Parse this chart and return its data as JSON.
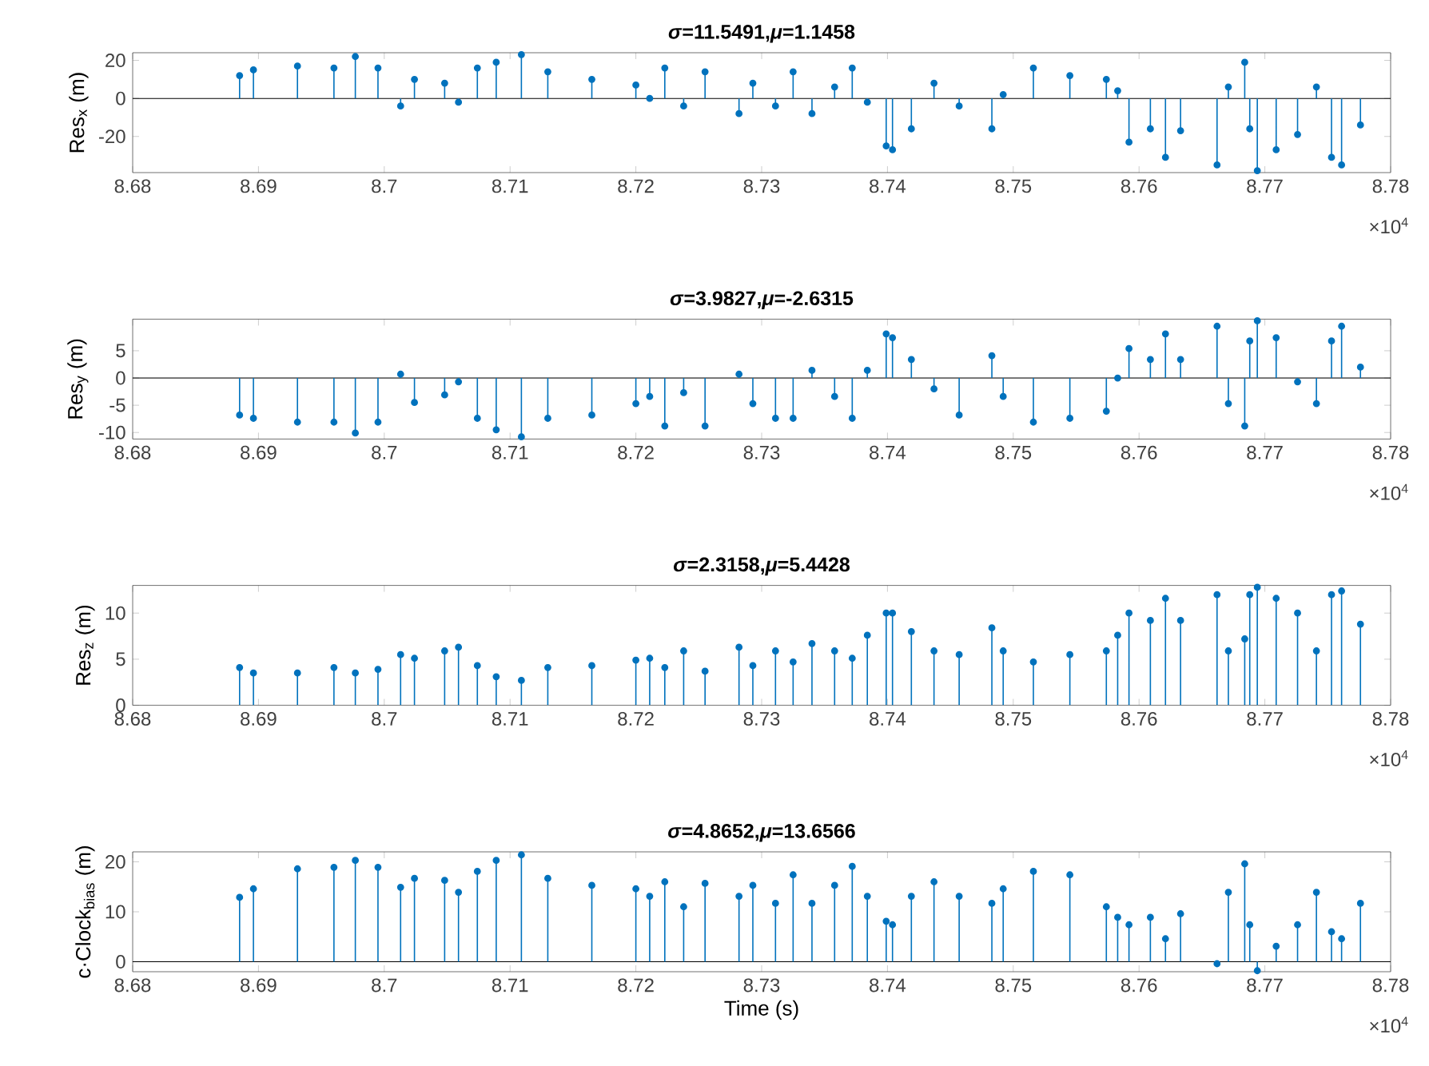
{
  "chart_data": [
    {
      "type": "lollipop",
      "title": "*σ*=11.5491,*μ*=1.1458",
      "ylabel": "Res$_{x}$ (m)",
      "annotations": [
        "×10$^{4}$"
      ],
      "color": "#0072bd",
      "marker": "circle",
      "x": [
        8.6885,
        8.6896,
        8.6931,
        8.696,
        8.6977,
        8.6995,
        8.7013,
        8.7024,
        8.7048,
        8.7059,
        8.7074,
        8.7089,
        8.7109,
        8.713,
        8.7165,
        8.72,
        8.7211,
        8.7223,
        8.7238,
        8.7255,
        8.7282,
        8.7293,
        8.7311,
        8.7325,
        8.734,
        8.7358,
        8.7372,
        8.7384,
        8.7399,
        8.7404,
        8.7419,
        8.7437,
        8.7457,
        8.7483,
        8.7492,
        8.7516,
        8.7545,
        8.7574,
        8.7583,
        8.7592,
        8.7609,
        8.7621,
        8.7633,
        8.7662,
        8.7671,
        8.7684,
        8.7688,
        8.7694,
        8.7709,
        8.7726,
        8.7741,
        8.7753,
        8.7761,
        8.7776
      ],
      "values": [
        12,
        15,
        17,
        16,
        22,
        16,
        -4,
        10,
        8,
        -2,
        16,
        19,
        23,
        14,
        10,
        7,
        0,
        16,
        -4,
        14,
        -8,
        8,
        -4,
        14,
        -8,
        6,
        16,
        -2,
        -25,
        -27,
        -16,
        8,
        -4,
        -16,
        2,
        16,
        12,
        10,
        4,
        -23,
        -16,
        -31,
        -17,
        -35,
        6,
        19,
        -16,
        -38,
        -27,
        -19,
        6,
        -31,
        -35,
        -14
      ],
      "xlim": [
        8.68,
        8.78
      ],
      "ylim": [
        -39,
        24
      ],
      "yticks": [
        -20,
        0,
        20
      ],
      "xticks": [
        8.68,
        8.69,
        8.7,
        8.71,
        8.72,
        8.73,
        8.74,
        8.75,
        8.76,
        8.77,
        8.78
      ],
      "ref_lines": [
        {
          "axis": "y",
          "value": 0,
          "color": "#000000"
        }
      ]
    },
    {
      "type": "lollipop",
      "title": "*σ*=3.9827,*μ*=-2.6315",
      "ylabel": "Res$_{y}$ (m)",
      "annotations": [
        "×10$^{4}$"
      ],
      "color": "#0072bd",
      "marker": "circle",
      "x": [
        8.6885,
        8.6896,
        8.6931,
        8.696,
        8.6977,
        8.6995,
        8.7013,
        8.7024,
        8.7048,
        8.7059,
        8.7074,
        8.7089,
        8.7109,
        8.713,
        8.7165,
        8.72,
        8.7211,
        8.7223,
        8.7238,
        8.7255,
        8.7282,
        8.7293,
        8.7311,
        8.7325,
        8.734,
        8.7358,
        8.7372,
        8.7384,
        8.7399,
        8.7404,
        8.7419,
        8.7437,
        8.7457,
        8.7483,
        8.7492,
        8.7516,
        8.7545,
        8.7574,
        8.7583,
        8.7592,
        8.7609,
        8.7621,
        8.7633,
        8.7662,
        8.7671,
        8.7684,
        8.7688,
        8.7694,
        8.7709,
        8.7726,
        8.7741,
        8.7753,
        8.7761,
        8.7776
      ],
      "values": [
        -6.8,
        -7.4,
        -8.1,
        -8.1,
        -10.1,
        -8.1,
        0.7,
        -4.5,
        -3.1,
        -0.7,
        -7.4,
        -9.5,
        -10.8,
        -7.4,
        -6.8,
        -4.7,
        -3.4,
        -8.8,
        -2.7,
        -8.8,
        0.7,
        -4.7,
        -7.4,
        -7.4,
        1.4,
        -3.4,
        -7.4,
        1.4,
        8.1,
        7.4,
        3.4,
        -2,
        -6.8,
        4.1,
        -3.4,
        -8.1,
        -7.4,
        -6.1,
        0,
        5.4,
        3.4,
        8.1,
        3.4,
        9.5,
        -4.7,
        -8.8,
        6.8,
        10.5,
        7.4,
        -0.7,
        -4.7,
        6.8,
        9.5,
        2
      ],
      "xlim": [
        8.68,
        8.78
      ],
      "ylim": [
        -11.2,
        10.8
      ],
      "yticks": [
        -10,
        -5,
        0,
        5
      ],
      "xticks": [
        8.68,
        8.69,
        8.7,
        8.71,
        8.72,
        8.73,
        8.74,
        8.75,
        8.76,
        8.77,
        8.78
      ],
      "ref_lines": [
        {
          "axis": "y",
          "value": 0,
          "color": "#000000"
        }
      ]
    },
    {
      "type": "lollipop",
      "title": "*σ*=2.3158,*μ*=5.4428",
      "ylabel": "Res$_{z}$ (m)",
      "annotations": [
        "×10$^{4}$"
      ],
      "color": "#0072bd",
      "marker": "circle",
      "x": [
        8.6885,
        8.6896,
        8.6931,
        8.696,
        8.6977,
        8.6995,
        8.7013,
        8.7024,
        8.7048,
        8.7059,
        8.7074,
        8.7089,
        8.7109,
        8.713,
        8.7165,
        8.72,
        8.7211,
        8.7223,
        8.7238,
        8.7255,
        8.7282,
        8.7293,
        8.7311,
        8.7325,
        8.734,
        8.7358,
        8.7372,
        8.7384,
        8.7399,
        8.7404,
        8.7419,
        8.7437,
        8.7457,
        8.7483,
        8.7492,
        8.7516,
        8.7545,
        8.7574,
        8.7583,
        8.7592,
        8.7609,
        8.7621,
        8.7633,
        8.7662,
        8.7671,
        8.7684,
        8.7688,
        8.7694,
        8.7709,
        8.7726,
        8.7741,
        8.7753,
        8.7761,
        8.7776
      ],
      "values": [
        4.1,
        3.5,
        3.5,
        4.1,
        3.5,
        3.9,
        5.5,
        5.1,
        5.9,
        6.3,
        4.3,
        3.1,
        2.7,
        4.1,
        4.3,
        4.9,
        5.1,
        4.1,
        5.9,
        3.7,
        6.3,
        4.3,
        5.9,
        4.7,
        6.7,
        5.9,
        5.1,
        7.6,
        10,
        10,
        8,
        5.9,
        5.5,
        8.4,
        5.9,
        4.7,
        5.5,
        5.9,
        7.6,
        10,
        9.2,
        11.6,
        9.2,
        12,
        5.9,
        7.2,
        12,
        12.8,
        11.6,
        10,
        5.9,
        12,
        12.4,
        8.8
      ],
      "xlim": [
        8.68,
        8.78
      ],
      "ylim": [
        0,
        13
      ],
      "yticks": [
        0,
        5,
        10
      ],
      "xticks": [
        8.68,
        8.69,
        8.7,
        8.71,
        8.72,
        8.73,
        8.74,
        8.75,
        8.76,
        8.77,
        8.78
      ]
    },
    {
      "type": "lollipop",
      "title": "*σ*=4.8652,*μ*=13.6566",
      "ylabel": "c·Clock$_{bias}$ (m)",
      "xlabel": "Time (s)",
      "annotations": [
        "×10$^{4}$"
      ],
      "color": "#0072bd",
      "marker": "circle",
      "x": [
        8.6885,
        8.6896,
        8.6931,
        8.696,
        8.6977,
        8.6995,
        8.7013,
        8.7024,
        8.7048,
        8.7059,
        8.7074,
        8.7089,
        8.7109,
        8.713,
        8.7165,
        8.72,
        8.7211,
        8.7223,
        8.7238,
        8.7255,
        8.7282,
        8.7293,
        8.7311,
        8.7325,
        8.734,
        8.7358,
        8.7372,
        8.7384,
        8.7399,
        8.7404,
        8.7419,
        8.7437,
        8.7457,
        8.7483,
        8.7492,
        8.7516,
        8.7545,
        8.7574,
        8.7583,
        8.7592,
        8.7609,
        8.7621,
        8.7633,
        8.7662,
        8.7671,
        8.7684,
        8.7688,
        8.7694,
        8.7709,
        8.7726,
        8.7741,
        8.7753,
        8.7761,
        8.7776
      ],
      "values": [
        12.9,
        14.6,
        18.6,
        18.9,
        20.3,
        18.9,
        14.9,
        16.7,
        16.3,
        13.9,
        18.1,
        20.3,
        21.4,
        16.7,
        15.3,
        14.6,
        13.1,
        16,
        11,
        15.7,
        13.1,
        15.3,
        11.7,
        17.4,
        11.7,
        15.3,
        19.1,
        13.1,
        8.1,
        7.4,
        13.1,
        16,
        13.1,
        11.7,
        14.6,
        18.1,
        17.4,
        11,
        8.9,
        7.4,
        8.9,
        4.6,
        9.6,
        -0.4,
        13.9,
        19.6,
        7.4,
        -1.8,
        3.1,
        7.4,
        13.9,
        6,
        4.6,
        11.7
      ],
      "xlim": [
        8.68,
        8.78
      ],
      "ylim": [
        -2,
        22
      ],
      "yticks": [
        0,
        10,
        20
      ],
      "xticks": [
        8.68,
        8.69,
        8.7,
        8.71,
        8.72,
        8.73,
        8.74,
        8.75,
        8.76,
        8.77,
        8.78
      ],
      "ref_lines": [
        {
          "axis": "y",
          "value": 0,
          "color": "#000000"
        }
      ]
    }
  ]
}
